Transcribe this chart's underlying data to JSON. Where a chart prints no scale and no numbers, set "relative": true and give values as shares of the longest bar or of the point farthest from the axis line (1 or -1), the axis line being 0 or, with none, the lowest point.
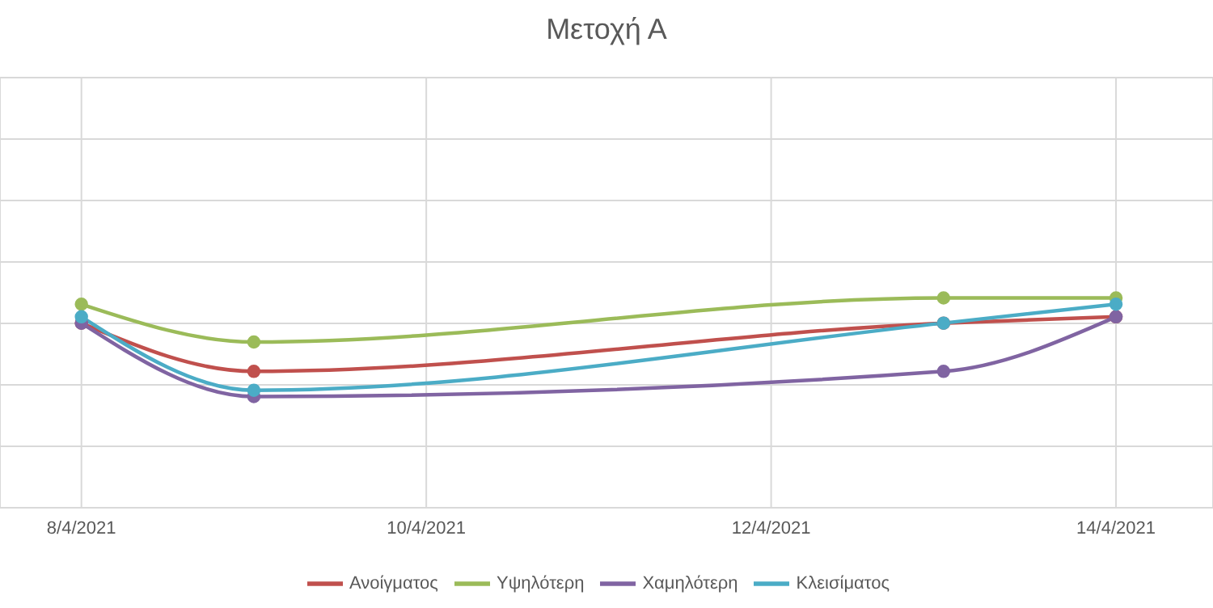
{
  "chart_data": {
    "type": "line",
    "title": "Μετοχή Α",
    "relative": true,
    "x": [
      "2021-04-08",
      "2021-04-09",
      "2021-04-13",
      "2021-04-14"
    ],
    "xlim": [
      "2021-04-07T12:40",
      "2021-04-14T13:30"
    ],
    "xticks": [
      {
        "value": "2021-04-08",
        "label": "8/4/2021"
      },
      {
        "value": "2021-04-10",
        "label": "10/4/2021"
      },
      {
        "value": "2021-04-12",
        "label": "12/4/2021"
      },
      {
        "value": "2021-04-14",
        "label": "14/4/2021"
      }
    ],
    "grid": true,
    "legend": "bottom",
    "marker": "circle",
    "line_style": "solid",
    "series": [
      {
        "name": "Ανοίγματος",
        "color": "#c0504d",
        "values": [
          0.88,
          0.65,
          0.88,
          0.91
        ]
      },
      {
        "name": "Υψηλότερη",
        "color": "#9bbb59",
        "values": [
          0.97,
          0.79,
          1,
          1
        ]
      },
      {
        "name": "Χαμηλότερη",
        "color": "#8064a2",
        "values": [
          0.88,
          0.53,
          0.65,
          0.91
        ]
      },
      {
        "name": "Κλεισίματος",
        "color": "#4bacc6",
        "values": [
          0.91,
          0.56,
          0.88,
          0.97
        ]
      }
    ]
  }
}
